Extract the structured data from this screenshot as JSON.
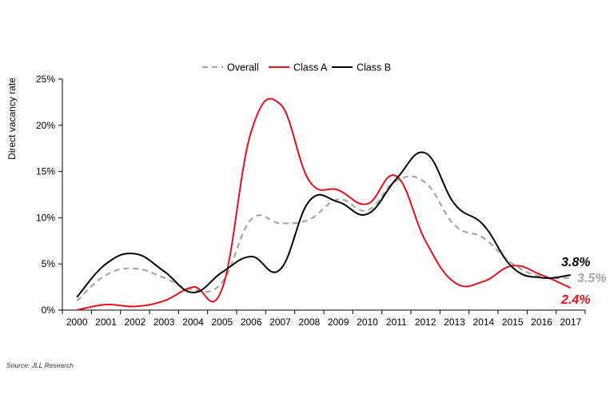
{
  "chart_data": {
    "type": "line",
    "title": "",
    "xlabel": "",
    "ylabel": "Direct vacancy rate",
    "ylim": [
      0,
      25
    ],
    "y_ticks": [
      "0%",
      "5%",
      "10%",
      "15%",
      "20%",
      "25%"
    ],
    "y_tick_values": [
      0,
      5,
      10,
      15,
      20,
      25
    ],
    "categories": [
      "2000",
      "2001",
      "2002",
      "2003",
      "2004",
      "2005",
      "2006",
      "2007",
      "2008",
      "2009",
      "2010",
      "2011",
      "2012",
      "2013",
      "2014",
      "2015",
      "2016",
      "2017"
    ],
    "legend_position": "top",
    "grid": false,
    "series": [
      {
        "name": "Overall",
        "color": "#a6a6a6",
        "style": "dashed",
        "values": [
          1.0,
          3.8,
          4.5,
          3.5,
          2.2,
          3.0,
          9.8,
          9.4,
          9.8,
          12.0,
          10.8,
          14.0,
          13.8,
          9.2,
          7.8,
          5.0,
          3.6,
          3.5
        ],
        "end_label": "3.5%"
      },
      {
        "name": "Class A",
        "color": "#e8101d",
        "style": "solid",
        "values": [
          0.0,
          0.6,
          0.4,
          1.0,
          2.5,
          2.3,
          19.3,
          22.3,
          14.0,
          13.0,
          11.5,
          14.5,
          7.5,
          3.0,
          3.1,
          4.8,
          3.8,
          2.4
        ],
        "end_label": "2.4%"
      },
      {
        "name": "Class B",
        "color": "#000000",
        "style": "solid",
        "values": [
          1.4,
          5.0,
          6.1,
          4.2,
          1.9,
          4.1,
          5.8,
          4.4,
          11.8,
          11.7,
          10.4,
          14.2,
          17.0,
          11.5,
          9.2,
          4.6,
          3.5,
          3.8
        ],
        "end_label": "3.8%"
      }
    ]
  },
  "footer": {
    "source": "Source: JLL Research"
  }
}
